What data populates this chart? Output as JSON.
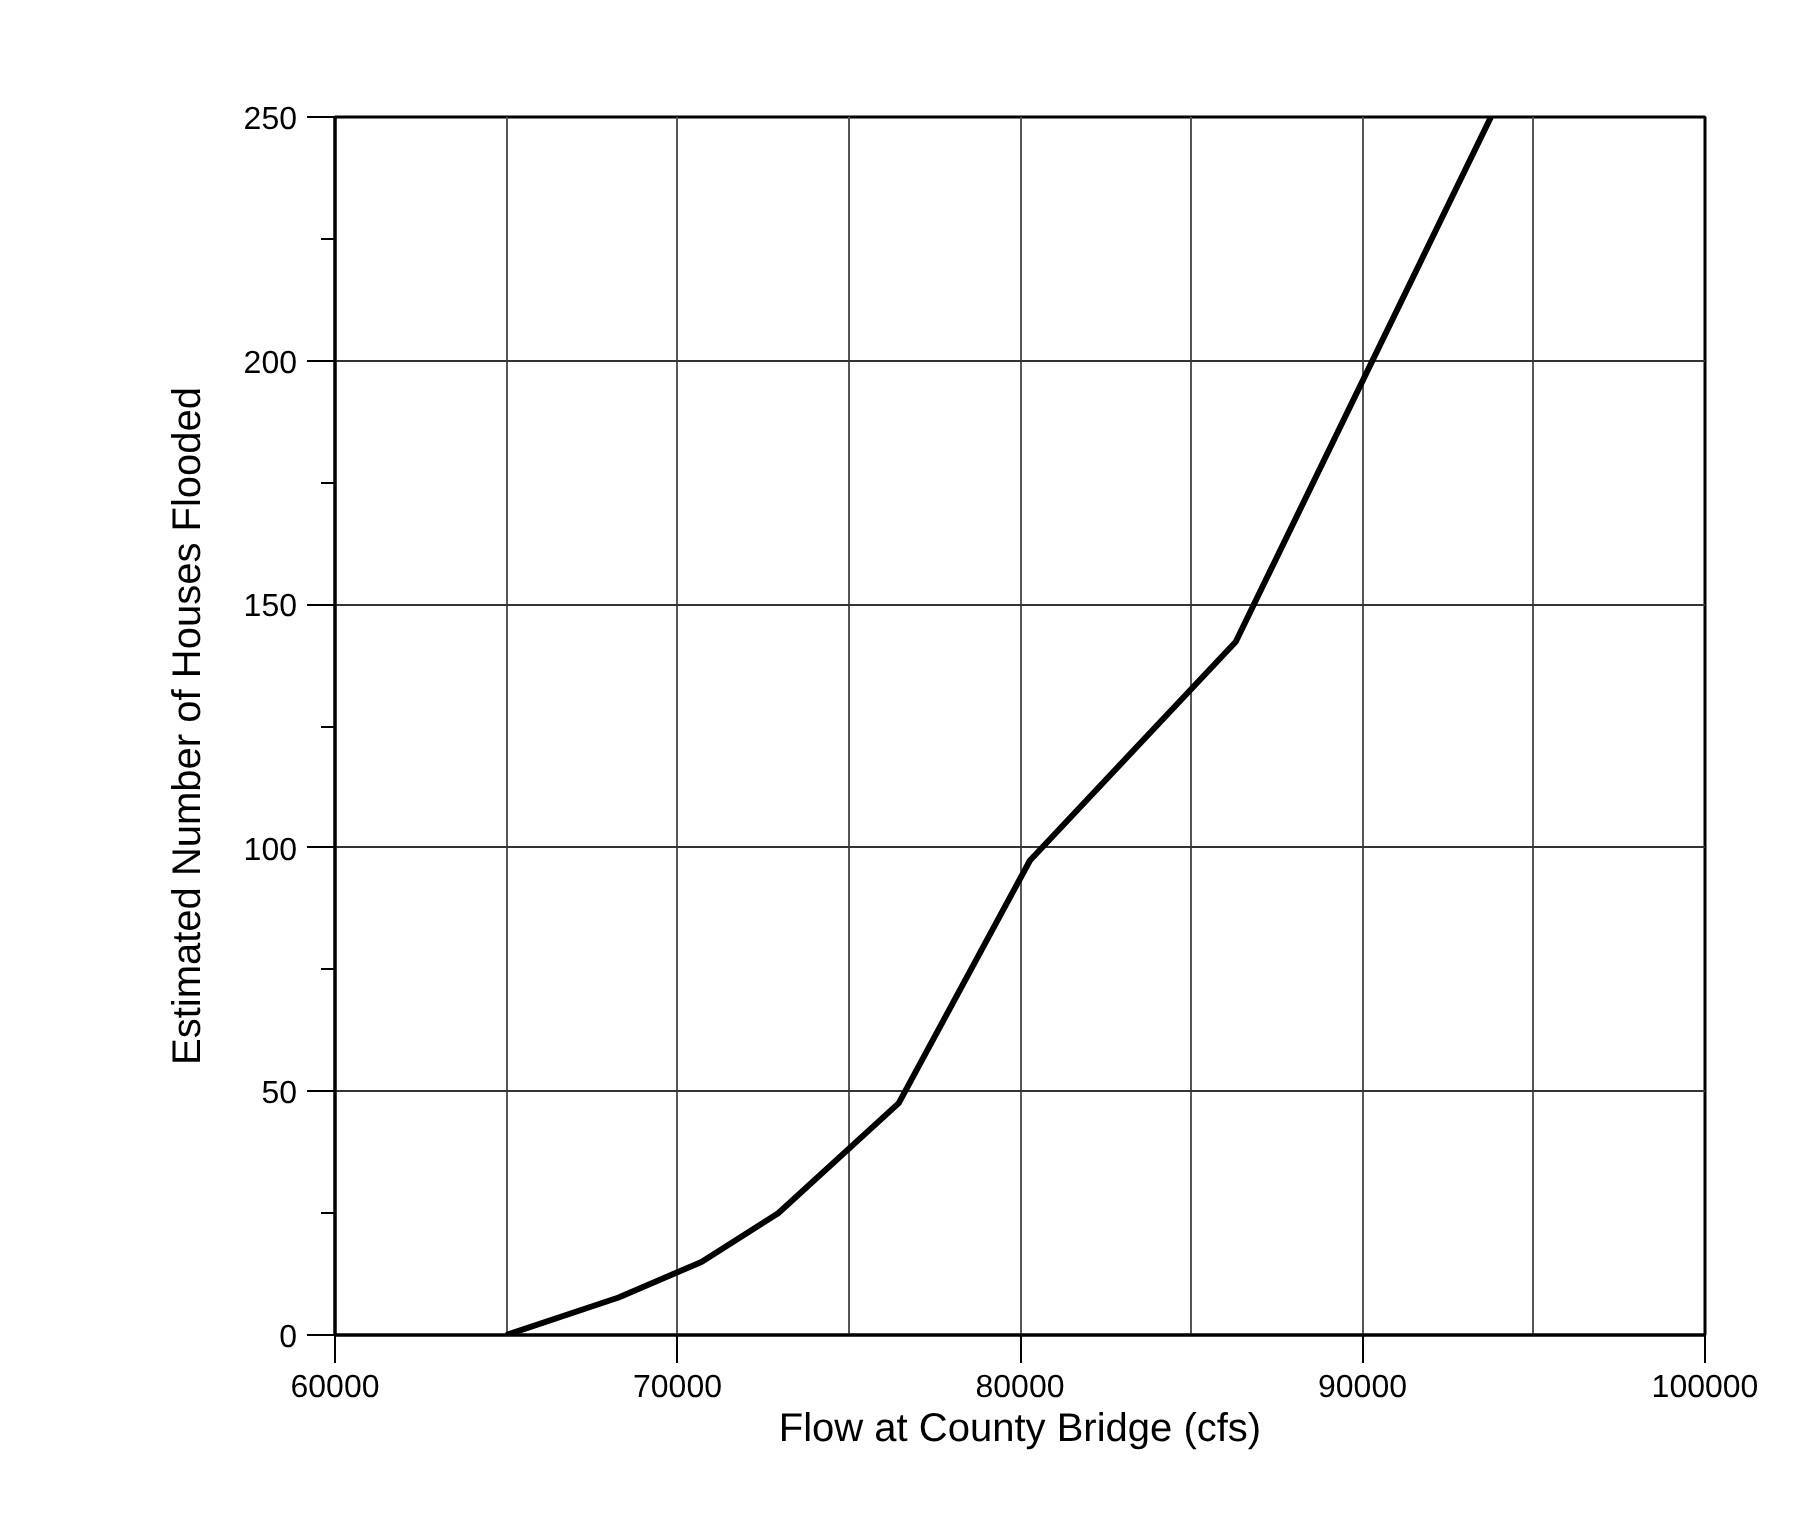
{
  "chart_data": {
    "type": "line",
    "xlabel": "Flow at County Bridge (cfs)",
    "ylabel": "Estimated Number of Houses Flooded",
    "x": [
      65000,
      68280,
      70700,
      72940,
      76460,
      80290,
      86300,
      93750
    ],
    "series": [
      {
        "color": "#000000",
        "values": [
          0,
          7.7,
          15,
          25,
          47.6,
          97.4,
          142.3,
          250
        ]
      }
    ],
    "xlim": [
      60000,
      100000
    ],
    "xticks": [
      60000,
      {
        "value": 65000,
        "label": null
      },
      70000,
      {
        "value": 75000,
        "label": null
      },
      80000,
      {
        "value": 85000,
        "label": null
      },
      90000,
      {
        "value": 95000,
        "label": null
      },
      100000
    ],
    "ylim": [
      0,
      250
    ],
    "yticks": [
      0,
      {
        "value": 25,
        "label": null
      },
      50,
      {
        "value": 75,
        "label": null
      },
      100,
      {
        "value": 125,
        "label": null
      },
      150,
      {
        "value": 175,
        "label": null
      },
      200,
      {
        "value": 225,
        "label": null
      },
      250
    ],
    "grid": true,
    "line_style": "solid",
    "marker": "none"
  }
}
